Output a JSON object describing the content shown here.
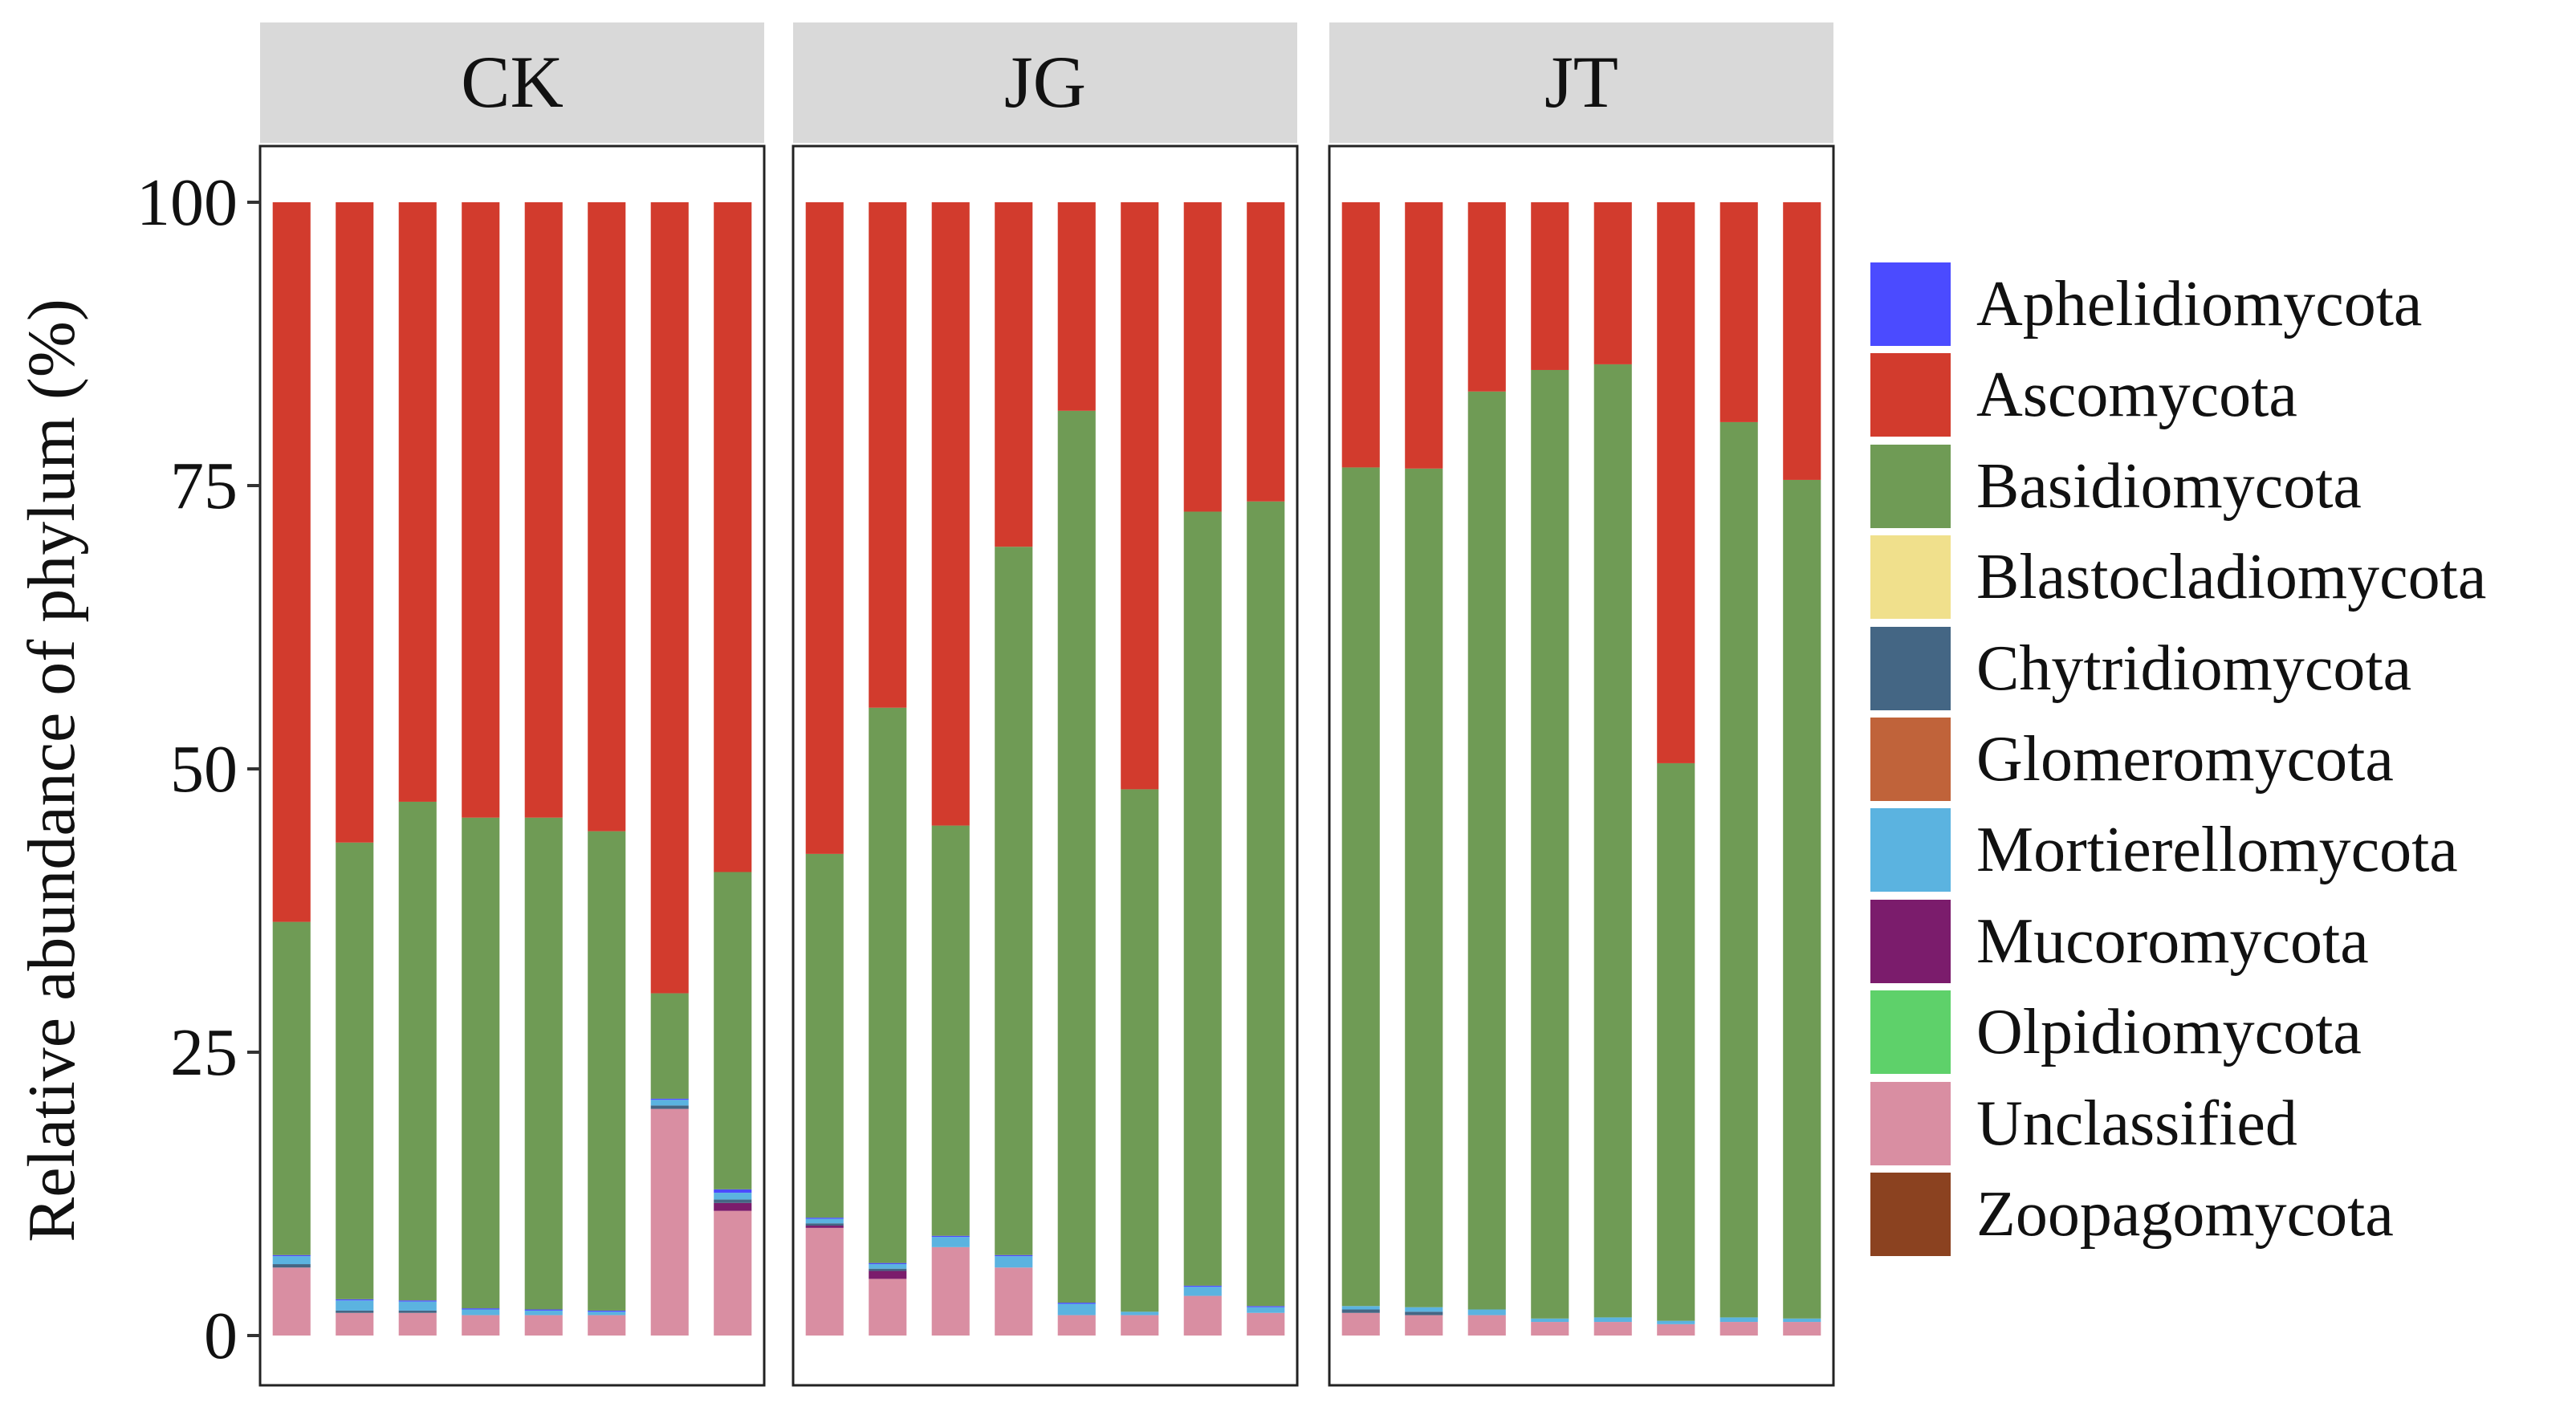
{
  "chart_data": {
    "type": "bar",
    "stacked": true,
    "facets": [
      "CK",
      "JG",
      "JT"
    ],
    "samples_per_facet": 8,
    "ylabel": "Relative abundance of phylum (%)",
    "xlabel": "",
    "ylim": [
      0,
      100
    ],
    "yticks": [
      "0",
      "25",
      "50",
      "75",
      "100"
    ],
    "legend_position": "right",
    "series": [
      {
        "name": "Unclassified",
        "color": "#d98ea2",
        "values": [
          [
            6.0,
            2.0,
            2.0,
            1.8,
            1.8,
            1.8,
            20.0,
            11.0
          ],
          [
            9.5,
            5.0,
            7.8,
            6.0,
            1.8,
            1.8,
            3.5,
            2.0
          ],
          [
            2.0,
            1.8,
            1.8,
            1.2,
            1.2,
            1.0,
            1.2,
            1.2
          ]
        ]
      },
      {
        "name": "Mucoromycota",
        "color": "#7b1c6c",
        "values": [
          [
            0.0,
            0.0,
            0.0,
            0.0,
            0.0,
            0.0,
            0.0,
            0.7
          ],
          [
            0.2,
            0.7,
            0.0,
            0.0,
            0.0,
            0.0,
            0.0,
            0.0
          ],
          [
            0.0,
            0.0,
            0.0,
            0.0,
            0.0,
            0.0,
            0.0,
            0.0
          ]
        ]
      },
      {
        "name": "Chytridiomycota",
        "color": "#446684",
        "values": [
          [
            0.3,
            0.2,
            0.2,
            0.0,
            0.0,
            0.0,
            0.3,
            0.3
          ],
          [
            0.2,
            0.2,
            0.0,
            0.0,
            0.0,
            0.0,
            0.0,
            0.0
          ],
          [
            0.3,
            0.3,
            0.0,
            0.0,
            0.0,
            0.0,
            0.0,
            0.0
          ]
        ]
      },
      {
        "name": "Mortierellomycota",
        "color": "#5bb3e0",
        "values": [
          [
            0.7,
            0.9,
            0.8,
            0.5,
            0.4,
            0.3,
            0.5,
            0.6
          ],
          [
            0.4,
            0.4,
            0.9,
            1.0,
            1.0,
            0.3,
            0.8,
            0.5
          ],
          [
            0.3,
            0.4,
            0.5,
            0.3,
            0.4,
            0.3,
            0.4,
            0.3
          ]
        ]
      },
      {
        "name": "Aphelidiomycota",
        "color": "#4b4bff",
        "values": [
          [
            0.1,
            0.1,
            0.1,
            0.1,
            0.1,
            0.1,
            0.1,
            0.3
          ],
          [
            0.1,
            0.1,
            0.1,
            0.1,
            0.1,
            0.0,
            0.1,
            0.1
          ],
          [
            0.0,
            0.0,
            0.0,
            0.0,
            0.0,
            0.0,
            0.0,
            0.0
          ]
        ]
      },
      {
        "name": "Basidiomycota",
        "color": "#6f9b55",
        "values": [
          [
            29.4,
            40.3,
            44.0,
            43.3,
            43.4,
            42.3,
            9.3,
            28.0
          ],
          [
            32.1,
            49.0,
            36.2,
            62.5,
            78.7,
            46.1,
            68.3,
            71.0
          ],
          [
            74.0,
            74.0,
            81.0,
            83.7,
            84.1,
            49.2,
            79.0,
            74.0
          ]
        ]
      },
      {
        "name": "Ascomycota",
        "color": "#d23b2d",
        "values": [
          [
            63.5,
            56.5,
            52.9,
            54.3,
            54.3,
            55.5,
            69.8,
            59.1
          ],
          [
            57.5,
            44.6,
            55.0,
            30.4,
            18.4,
            51.8,
            27.3,
            26.4
          ],
          [
            23.4,
            23.5,
            16.7,
            14.8,
            14.3,
            49.5,
            19.4,
            24.5
          ]
        ]
      },
      {
        "name": "Blastocladiomycota",
        "color": "#f0e08c",
        "values": [
          [
            0,
            0,
            0,
            0,
            0,
            0,
            0,
            0
          ],
          [
            0,
            0,
            0,
            0,
            0,
            0,
            0,
            0
          ],
          [
            0,
            0,
            0,
            0,
            0,
            0,
            0,
            0
          ]
        ]
      },
      {
        "name": "Glomeromycota",
        "color": "#c0633a",
        "values": [
          [
            0,
            0,
            0,
            0,
            0,
            0,
            0,
            0
          ],
          [
            0,
            0,
            0,
            0,
            0,
            0,
            0,
            0
          ],
          [
            0,
            0,
            0,
            0,
            0,
            0,
            0,
            0
          ]
        ]
      },
      {
        "name": "Olpidiomycota",
        "color": "#5ed16a",
        "values": [
          [
            0,
            0,
            0,
            0,
            0,
            0,
            0,
            0
          ],
          [
            0,
            0,
            0,
            0,
            0,
            0,
            0,
            0
          ],
          [
            0,
            0,
            0,
            0,
            0,
            0,
            0,
            0
          ]
        ]
      },
      {
        "name": "Zoopagomycota",
        "color": "#8b4220",
        "values": [
          [
            0,
            0,
            0,
            0,
            0,
            0,
            0,
            0
          ],
          [
            0,
            0,
            0,
            0,
            0,
            0,
            0,
            0
          ],
          [
            0,
            0,
            0,
            0,
            0,
            0,
            0,
            0
          ]
        ]
      }
    ],
    "legend": [
      {
        "label": "Aphelidiomycota",
        "color": "#4b4bff"
      },
      {
        "label": "Ascomycota",
        "color": "#d23b2d"
      },
      {
        "label": "Basidiomycota",
        "color": "#6f9b55"
      },
      {
        "label": "Blastocladiomycota",
        "color": "#f0e08c"
      },
      {
        "label": "Chytridiomycota",
        "color": "#446684"
      },
      {
        "label": "Glomeromycota",
        "color": "#c0633a"
      },
      {
        "label": "Mortierellomycota",
        "color": "#5bb3e0"
      },
      {
        "label": "Mucoromycota",
        "color": "#7b1c6c"
      },
      {
        "label": "Olpidiomycota",
        "color": "#5ed16a"
      },
      {
        "label": "Unclassified",
        "color": "#d98ea2"
      },
      {
        "label": "Zoopagomycota",
        "color": "#8b4220"
      }
    ]
  }
}
